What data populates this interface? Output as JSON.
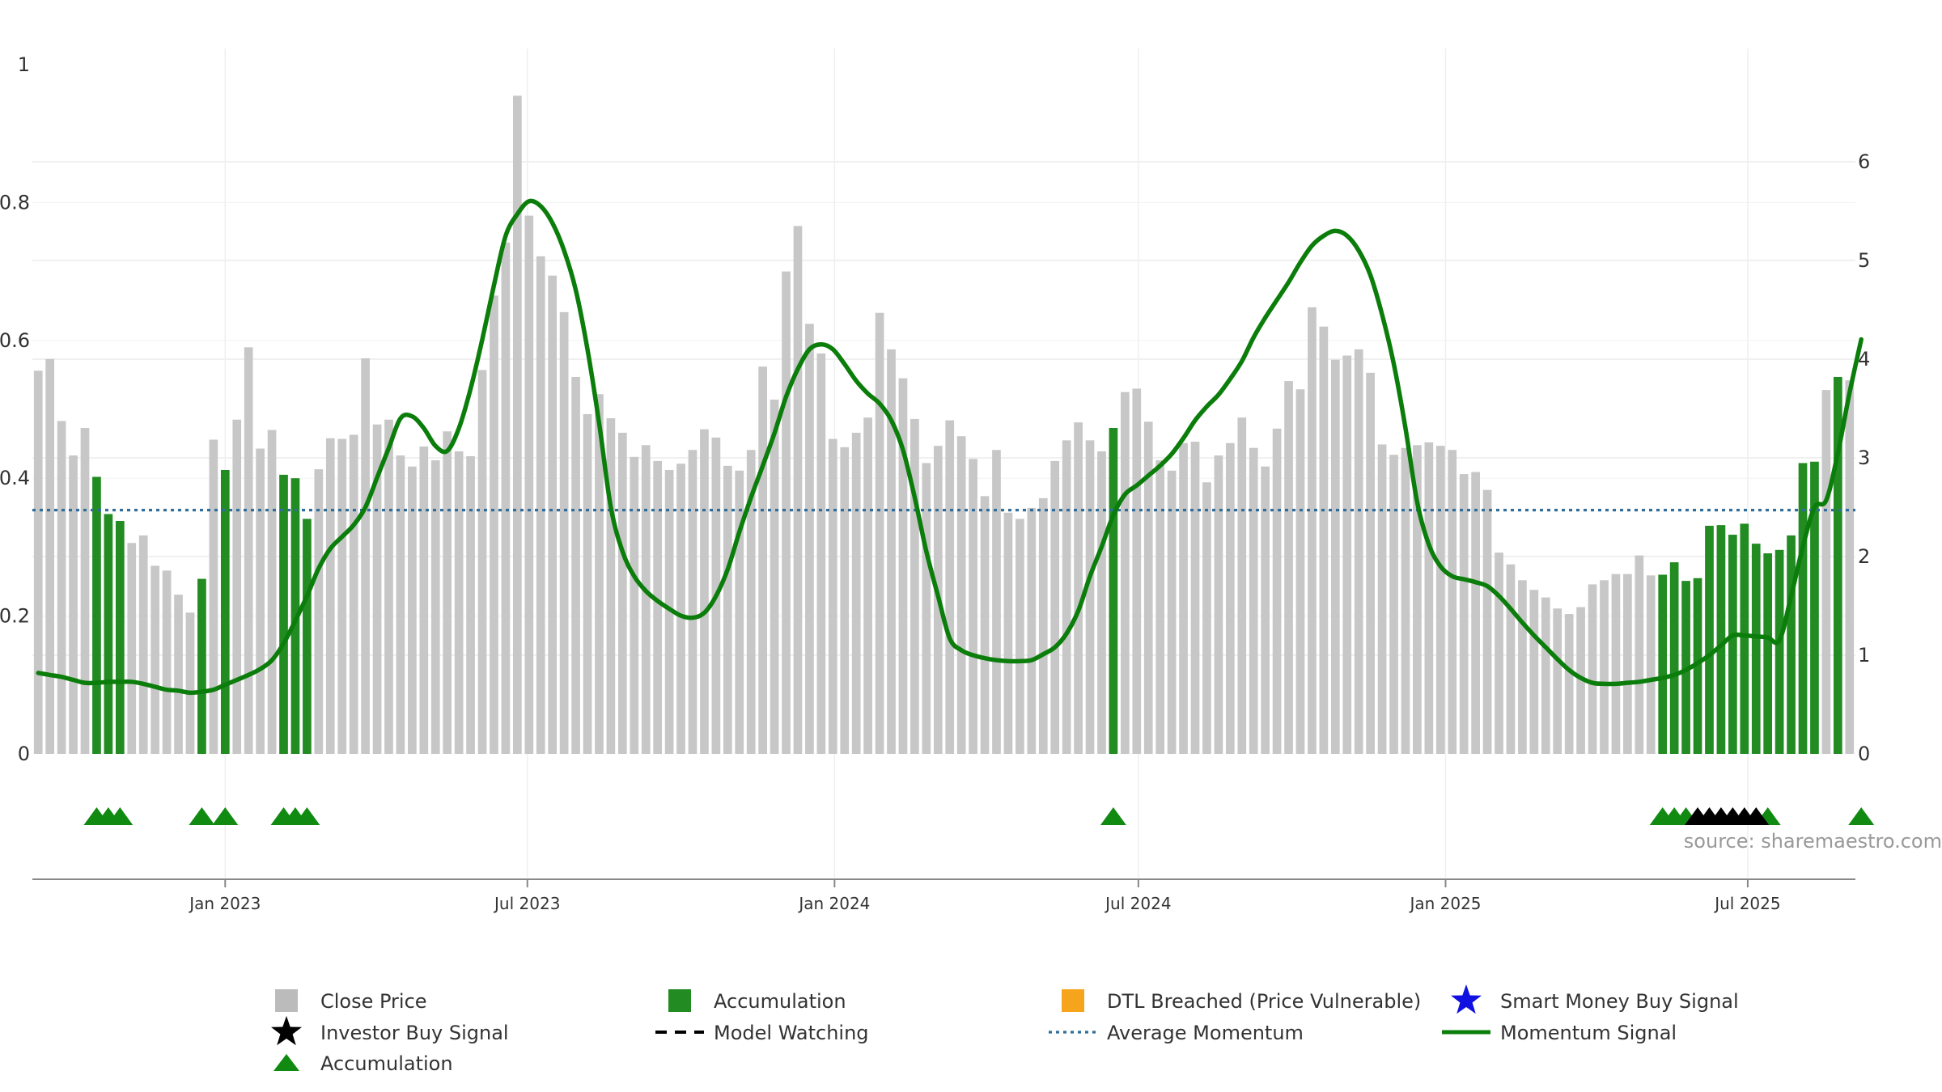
{
  "chart_data": {
    "type": "bar",
    "x_start": "2022-09-11",
    "week_step_days": 7,
    "left_axis": {
      "ylim": [
        0,
        1
      ],
      "ticks": [
        "0",
        "0.2",
        "0.4",
        "0.6",
        "0.8",
        "1"
      ]
    },
    "right_axis": {
      "ylim": [
        0,
        7
      ],
      "ticks": [
        "0",
        "1",
        "2",
        "3",
        "4",
        "5",
        "6"
      ]
    },
    "x_ticks": [
      "Jan 2023",
      "Jul 2023",
      "Jan 2024",
      "Jul 2024",
      "Jan 2025",
      "Jul 2025"
    ],
    "close_price": [
      0.556,
      0.573,
      0.483,
      0.433,
      0.473,
      0.402,
      0.348,
      0.338,
      0.306,
      0.317,
      0.273,
      0.266,
      0.231,
      0.205,
      0.254,
      0.456,
      0.412,
      0.485,
      0.59,
      0.443,
      0.47,
      0.405,
      0.4,
      0.341,
      0.413,
      0.458,
      0.457,
      0.463,
      0.574,
      0.478,
      0.485,
      0.433,
      0.417,
      0.446,
      0.426,
      0.468,
      0.439,
      0.432,
      0.557,
      0.665,
      0.742,
      0.955,
      0.781,
      0.722,
      0.694,
      0.641,
      0.547,
      0.493,
      0.522,
      0.487,
      0.466,
      0.431,
      0.448,
      0.425,
      0.412,
      0.421,
      0.441,
      0.471,
      0.459,
      0.418,
      0.411,
      0.441,
      0.562,
      0.514,
      0.7,
      0.766,
      0.624,
      0.581,
      0.457,
      0.445,
      0.466,
      0.488,
      0.64,
      0.587,
      0.545,
      0.486,
      0.422,
      0.447,
      0.484,
      0.461,
      0.428,
      0.374,
      0.441,
      0.35,
      0.341,
      0.357,
      0.371,
      0.425,
      0.455,
      0.481,
      0.455,
      0.439,
      0.473,
      0.525,
      0.53,
      0.482,
      0.426,
      0.411,
      0.451,
      0.453,
      0.394,
      0.433,
      0.451,
      0.488,
      0.444,
      0.417,
      0.472,
      0.541,
      0.529,
      0.648,
      0.62,
      0.572,
      0.578,
      0.587,
      0.553,
      0.449,
      0.434,
      0.444,
      0.448,
      0.452,
      0.447,
      0.441,
      0.406,
      0.409,
      0.383,
      0.292,
      0.275,
      0.252,
      0.238,
      0.227,
      0.211,
      0.203,
      0.213,
      0.246,
      0.252,
      0.261,
      0.261,
      0.288,
      0.259,
      0.26,
      0.278,
      0.251,
      0.255,
      0.331,
      0.332,
      0.318,
      0.334,
      0.305,
      0.291,
      0.296,
      0.317,
      0.422,
      0.424,
      0.528,
      0.547,
      0.542
    ],
    "accumulation_bars": [
      5,
      6,
      7,
      14,
      16,
      21,
      22,
      23,
      92,
      139,
      140,
      141,
      142,
      143,
      144,
      145,
      146,
      147,
      148,
      149,
      150,
      151,
      152,
      154
    ],
    "momentum_signal": [
      0.82,
      0.8,
      0.78,
      0.75,
      0.72,
      0.72,
      0.73,
      0.73,
      0.73,
      0.71,
      0.68,
      0.65,
      0.64,
      0.62,
      0.63,
      0.65,
      0.7,
      0.75,
      0.8,
      0.86,
      0.95,
      1.12,
      1.35,
      1.6,
      1.88,
      2.08,
      2.2,
      2.32,
      2.5,
      2.8,
      3.1,
      3.4,
      3.42,
      3.3,
      3.12,
      3.07,
      3.3,
      3.7,
      4.2,
      4.75,
      5.25,
      5.47,
      5.6,
      5.55,
      5.38,
      5.1,
      4.7,
      4.1,
      3.35,
      2.5,
      2.05,
      1.8,
      1.65,
      1.55,
      1.47,
      1.4,
      1.38,
      1.43,
      1.6,
      1.87,
      2.25,
      2.6,
      2.92,
      3.25,
      3.62,
      3.9,
      4.1,
      4.15,
      4.1,
      3.95,
      3.78,
      3.65,
      3.55,
      3.38,
      3.08,
      2.6,
      2.05,
      1.6,
      1.17,
      1.05,
      1.0,
      0.97,
      0.95,
      0.94,
      0.94,
      0.95,
      1.01,
      1.08,
      1.22,
      1.45,
      1.8,
      2.1,
      2.42,
      2.63,
      2.72,
      2.82,
      2.92,
      3.04,
      3.2,
      3.38,
      3.52,
      3.64,
      3.8,
      3.98,
      4.22,
      4.42,
      4.6,
      4.78,
      4.98,
      5.15,
      5.25,
      5.3,
      5.25,
      5.1,
      4.85,
      4.45,
      3.95,
      3.3,
      2.55,
      2.12,
      1.9,
      1.8,
      1.77,
      1.74,
      1.7,
      1.6,
      1.47,
      1.33,
      1.2,
      1.08,
      0.96,
      0.85,
      0.77,
      0.72,
      0.71,
      0.71,
      0.72,
      0.73,
      0.75,
      0.77,
      0.8,
      0.85,
      0.92,
      1.0,
      1.1,
      1.2,
      1.2,
      1.19,
      1.18,
      1.15,
      1.6,
      2.1,
      2.5,
      2.57,
      3.05,
      3.66,
      4.2
    ],
    "average_momentum": 2.47,
    "accumulation_markers": [
      5,
      6,
      7,
      14,
      16,
      21,
      22,
      23,
      92,
      139,
      140,
      141,
      148,
      156
    ],
    "investor_buy_markers": [
      142,
      143,
      144,
      145,
      146,
      147
    ],
    "colors": {
      "close_price": "#c7c7c7",
      "accumulation": "#228b22",
      "momentum": "#0b7d0b",
      "average_momentum": "#2f6d9a",
      "marker_green": "#118a11",
      "marker_black": "#000000",
      "dtl": "#f7a41d",
      "smart_money": "#1010e0",
      "grid": "#ececec"
    },
    "legend": [
      {
        "label": "Close Price",
        "symbol": "gray-square",
        "color": "#bbbbbb"
      },
      {
        "label": "Accumulation",
        "symbol": "green-square",
        "color": "#228b22"
      },
      {
        "label": "DTL Breached (Price Vulnerable)",
        "symbol": "orange-square",
        "color": "#f7a41d"
      },
      {
        "label": "Smart Money Buy Signal",
        "symbol": "blue-star",
        "color": "#1010e0"
      },
      {
        "label": "Investor Buy Signal",
        "symbol": "black-star",
        "color": "#000000"
      },
      {
        "label": "Model Watching",
        "symbol": "black-dash",
        "color": "#000000"
      },
      {
        "label": "Average Momentum",
        "symbol": "blue-dot-line",
        "color": "#2f6d9a"
      },
      {
        "label": "Momentum Signal",
        "symbol": "green-line",
        "color": "#0b7d0b"
      },
      {
        "label": "Accumulation",
        "symbol": "green-triangle",
        "color": "#118a11"
      }
    ],
    "legend_position": "bottom-center",
    "grid": true
  },
  "source_note": "source: sharemaestro.com"
}
